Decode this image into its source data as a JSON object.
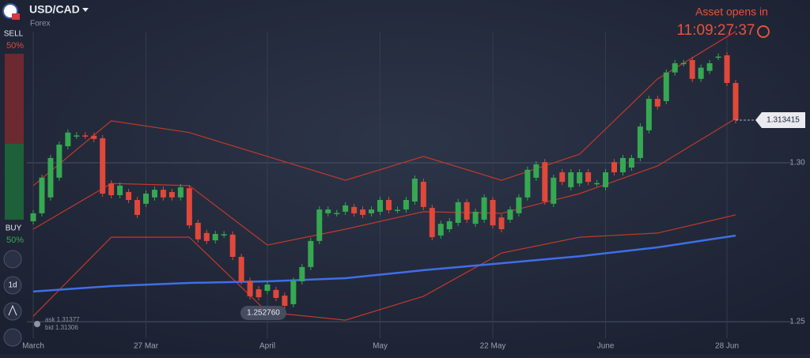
{
  "header": {
    "symbol": "USD/CAD",
    "market": "Forex"
  },
  "sidebar": {
    "sell_label": "SELL",
    "sell_pct": "50%",
    "buy_label": "BUY",
    "buy_pct": "50%",
    "timeframe": "1d"
  },
  "quote": {
    "ask": "ask 1.31377",
    "bid": "bid 1.31306"
  },
  "notice": {
    "text": "Asset opens in",
    "timer": "11:09:27:37"
  },
  "chart_data": {
    "type": "candlestick",
    "categories": [
      "March",
      null,
      null,
      null,
      null,
      null,
      null,
      null,
      null,
      null,
      null,
      null,
      null,
      "27 Mar",
      null,
      null,
      null,
      null,
      null,
      null,
      null,
      null,
      null,
      null,
      null,
      null,
      null,
      "April",
      null,
      null,
      null,
      null,
      null,
      null,
      null,
      null,
      null,
      null,
      null,
      null,
      "May",
      null,
      null,
      null,
      null,
      null,
      null,
      null,
      null,
      null,
      null,
      null,
      null,
      "22 May",
      null,
      null,
      null,
      null,
      null,
      null,
      null,
      null,
      null,
      null,
      null,
      null,
      "June",
      null,
      null,
      null,
      null,
      null,
      null,
      null,
      null,
      null,
      null,
      null,
      null,
      null,
      "28 Jun",
      null
    ],
    "open": [
      1.2816,
      1.2841,
      1.2891,
      1.2953,
      1.3052,
      1.3085,
      1.3086,
      1.3085,
      1.3077,
      1.2935,
      1.2898,
      1.2908,
      1.2883,
      1.2871,
      1.2891,
      1.2915,
      1.2908,
      1.2891,
      1.292,
      1.2811,
      1.2779,
      1.2756,
      1.2774,
      1.2774,
      1.2704,
      1.2629,
      1.2602,
      1.2597,
      1.26,
      1.2582,
      1.2555,
      1.2627,
      1.2672,
      1.2754,
      1.2841,
      1.2841,
      1.2846,
      1.2861,
      1.2853,
      1.2841,
      1.2846,
      1.2883,
      1.2851,
      1.2853,
      1.2878,
      1.294,
      1.2858,
      1.2771,
      1.2791,
      1.2811,
      1.2876,
      1.2808,
      1.2821,
      1.2883,
      1.2828,
      1.2821,
      1.2841,
      1.2891,
      1.2953,
      1.3002,
      1.2871,
      1.297,
      1.2923,
      1.2935,
      1.297,
      1.2935,
      1.2923,
      1.3002,
      1.297,
      1.2985,
      1.3015,
      1.3102,
      1.3201,
      1.3194,
      1.3284,
      1.3313,
      1.3323,
      1.3264,
      1.3289,
      1.3333,
      1.3338,
      1.3251
    ],
    "high": [
      1.2851,
      1.2963,
      1.3025,
      1.3067,
      1.3105,
      1.3096,
      1.3096,
      1.3095,
      1.3087,
      1.2945,
      1.2938,
      1.2918,
      1.2893,
      1.2913,
      1.2925,
      1.2925,
      1.2918,
      1.2933,
      1.293,
      1.2821,
      1.2789,
      1.2786,
      1.2785,
      1.2784,
      1.2714,
      1.2639,
      1.2612,
      1.2627,
      1.261,
      1.2592,
      1.2639,
      1.2682,
      1.2764,
      1.2863,
      1.2863,
      1.2852,
      1.2876,
      1.2871,
      1.2863,
      1.2863,
      1.2893,
      1.2893,
      1.2862,
      1.2893,
      1.296,
      1.295,
      1.2868,
      1.2818,
      1.2826,
      1.2886,
      1.2886,
      1.2856,
      1.2901,
      1.2893,
      1.2838,
      1.2863,
      1.2901,
      1.2988,
      1.3005,
      1.3012,
      1.2963,
      1.298,
      1.298,
      1.298,
      1.298,
      1.2946,
      1.298,
      1.3012,
      1.3025,
      1.3025,
      1.3124,
      1.3211,
      1.3211,
      1.3294,
      1.3323,
      1.3324,
      1.3333,
      1.3309,
      1.3323,
      1.3344,
      1.3348,
      1.3261
    ],
    "low": [
      1.2806,
      1.2831,
      1.2881,
      1.2943,
      1.3042,
      1.3075,
      1.3075,
      1.3065,
      1.2893,
      1.2888,
      1.2888,
      1.2873,
      1.2826,
      1.2861,
      1.2881,
      1.2881,
      1.2881,
      1.2881,
      1.2793,
      1.2749,
      1.2744,
      1.2746,
      1.2764,
      1.2694,
      1.2617,
      1.257,
      1.2567,
      1.2587,
      1.2565,
      1.254,
      1.2545,
      1.2617,
      1.2662,
      1.2744,
      1.2831,
      1.2831,
      1.2836,
      1.2831,
      1.2826,
      1.2831,
      1.2836,
      1.2841,
      1.2841,
      1.2843,
      1.2868,
      1.2851,
      1.2756,
      1.2761,
      1.2781,
      1.2801,
      1.2811,
      1.2798,
      1.2811,
      1.2793,
      1.2781,
      1.2811,
      1.2831,
      1.2881,
      1.2943,
      1.2868,
      1.2861,
      1.293,
      1.2913,
      1.2925,
      1.293,
      1.2925,
      1.2913,
      1.296,
      1.296,
      1.2975,
      1.3005,
      1.3092,
      1.3167,
      1.3184,
      1.3274,
      1.3303,
      1.3254,
      1.3254,
      1.3279,
      1.3323,
      1.3241,
      1.3124
    ],
    "close": [
      1.2841,
      1.2953,
      1.3015,
      1.3057,
      1.3095,
      1.3086,
      1.3085,
      1.3075,
      1.2903,
      1.2898,
      1.2928,
      1.2883,
      1.2836,
      1.2903,
      1.2915,
      1.2891,
      1.2891,
      1.2923,
      1.2803,
      1.2759,
      1.2754,
      1.2776,
      1.2775,
      1.2704,
      1.2627,
      1.258,
      1.2577,
      1.2617,
      1.2575,
      1.255,
      1.2629,
      1.2672,
      1.2754,
      1.2853,
      1.2853,
      1.2842,
      1.2866,
      1.2841,
      1.2836,
      1.2853,
      1.2883,
      1.2851,
      1.2852,
      1.2883,
      1.295,
      1.2861,
      1.2766,
      1.2808,
      1.2816,
      1.2876,
      1.2821,
      1.2846,
      1.2891,
      1.2803,
      1.2791,
      1.2853,
      1.2891,
      1.2978,
      1.2995,
      1.2878,
      1.2953,
      1.294,
      1.297,
      1.297,
      1.294,
      1.2936,
      1.297,
      1.297,
      1.3015,
      1.3015,
      1.3114,
      1.3201,
      1.3177,
      1.3284,
      1.3313,
      1.3314,
      1.3264,
      1.3299,
      1.3313,
      1.3334,
      1.3251,
      1.313415
    ],
    "up_color": "#36a852",
    "down_color": "#e0483a",
    "overlay_x": [
      0,
      9,
      18,
      27,
      36,
      45,
      54,
      63,
      72,
      81
    ],
    "overlays": [
      {
        "color": "#c0392b",
        "values": [
          1.2928,
          1.3132,
          1.3095,
          1.302,
          1.2945,
          1.302,
          1.2945,
          1.3027,
          1.3264,
          1.3413
        ]
      },
      {
        "color": "#c0392b",
        "values": [
          1.2791,
          1.2935,
          1.2928,
          1.2741,
          1.2791,
          1.2846,
          1.2841,
          1.2903,
          1.299,
          1.3139
        ]
      },
      {
        "color": "#c0392b",
        "values": [
          1.2517,
          1.2766,
          1.2766,
          1.253,
          1.2505,
          1.258,
          1.2716,
          1.2766,
          1.2779,
          1.2836
        ]
      },
      {
        "color": "#3f6fe6",
        "values": [
          1.2595,
          1.2612,
          1.2622,
          1.2627,
          1.2637,
          1.2662,
          1.2684,
          1.2706,
          1.2734,
          1.2771
        ]
      }
    ],
    "low_marker": {
      "value": 1.25276,
      "label": "1.252760"
    },
    "ylim": [
      1.2448,
      1.3512
    ],
    "yticks": [
      1.25,
      {
        "value": 1.3,
        "label": "1.30"
      }
    ],
    "grid": true
  }
}
